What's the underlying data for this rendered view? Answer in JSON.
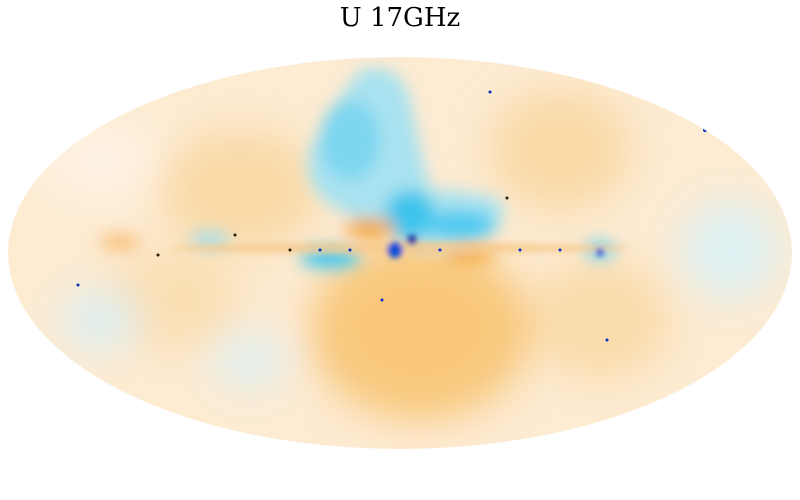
{
  "title": "U  17GHz"
}
